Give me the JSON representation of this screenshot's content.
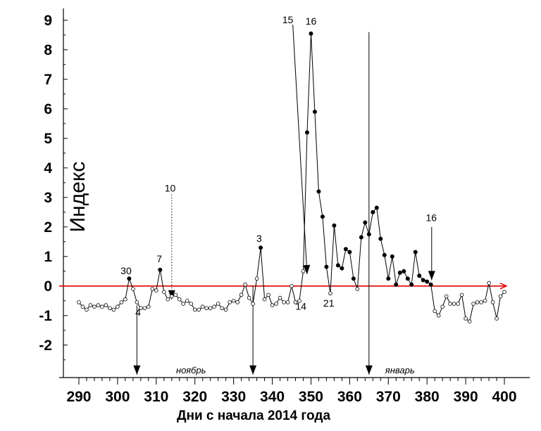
{
  "chart_data": {
    "type": "line",
    "xlabel": "Дни с начала 2014 года",
    "ylabel": "Индекс",
    "xlim": [
      286,
      404
    ],
    "ylim": [
      -3.1,
      9.4
    ],
    "x_ticks": [
      290,
      300,
      310,
      320,
      330,
      340,
      350,
      360,
      370,
      380,
      390,
      400
    ],
    "y_ticks": [
      9,
      8,
      7,
      6,
      5,
      4,
      3,
      2,
      1,
      0,
      -1,
      -2
    ],
    "y_tick_labels": [
      "9",
      "8",
      "7",
      "6",
      "5",
      "4",
      "3",
      "2",
      "1",
      "0",
      "-1",
      "-2"
    ],
    "baseline": {
      "y": 0,
      "color": "#dd0000"
    },
    "series": [
      {
        "x": [
          290,
          291,
          292,
          293,
          294,
          295,
          296,
          297,
          298,
          299,
          300,
          301,
          302,
          303,
          304,
          305,
          306,
          307,
          308,
          309,
          310,
          311,
          312,
          313,
          314,
          315,
          316,
          317,
          318,
          319,
          320,
          321,
          322,
          323,
          324,
          325,
          326,
          327,
          328,
          329,
          330,
          331,
          332,
          333,
          334,
          335,
          336,
          337,
          338,
          339,
          340,
          341,
          342,
          343,
          344,
          345,
          346,
          347,
          348,
          349,
          350,
          351,
          352,
          353,
          354,
          355,
          356,
          357,
          358,
          359,
          360,
          361,
          362,
          363,
          364,
          365,
          366,
          367,
          368,
          369,
          370,
          371,
          372,
          373,
          374,
          375,
          376,
          377,
          378,
          379,
          380,
          381,
          382,
          383,
          384,
          385,
          386,
          387,
          388,
          389,
          390,
          391,
          392,
          393,
          394,
          395,
          396,
          397,
          398,
          399,
          400
        ],
        "y": [
          -0.55,
          -0.7,
          -0.8,
          -0.65,
          -0.7,
          -0.65,
          -0.7,
          -0.65,
          -0.75,
          -0.8,
          -0.7,
          -0.55,
          -0.45,
          0.25,
          -0.1,
          -0.55,
          -0.75,
          -0.75,
          -0.7,
          -0.1,
          -0.15,
          0.55,
          -0.2,
          -0.45,
          -0.35,
          -0.3,
          -0.45,
          -0.6,
          -0.5,
          -0.6,
          -0.8,
          -0.8,
          -0.7,
          -0.75,
          -0.75,
          -0.7,
          -0.6,
          -0.75,
          -0.8,
          -0.55,
          -0.5,
          -0.55,
          -0.3,
          0.05,
          -0.4,
          -0.6,
          0.25,
          1.3,
          -0.45,
          -0.3,
          -0.65,
          -0.6,
          -0.4,
          -0.55,
          -0.55,
          0.0,
          -0.55,
          -0.5,
          0.5,
          5.2,
          8.55,
          5.9,
          3.2,
          2.35,
          0.65,
          -0.25,
          2.05,
          0.7,
          0.6,
          1.25,
          1.15,
          0.25,
          -0.1,
          1.65,
          2.15,
          1.75,
          2.5,
          2.65,
          1.6,
          1.05,
          0.25,
          1.0,
          0.05,
          0.45,
          0.5,
          0.25,
          0.05,
          1.15,
          0.35,
          0.2,
          0.15,
          0.05,
          -0.85,
          -1.0,
          -0.7,
          -0.35,
          -0.6,
          -0.6,
          -0.6,
          -0.3,
          -1.1,
          -1.2,
          -0.6,
          -0.55,
          -0.55,
          -0.5,
          0.1,
          -0.55,
          -1.1,
          -0.35,
          -0.2
        ],
        "filled_points": [
          303,
          311,
          337,
          349,
          350,
          351,
          352,
          353,
          354,
          356,
          357,
          358,
          359,
          360,
          361,
          363,
          364,
          365,
          366,
          367,
          368,
          369,
          370,
          371,
          372,
          373,
          374,
          375,
          376,
          377,
          378,
          379,
          380,
          381
        ]
      }
    ],
    "annotations": [
      {
        "text": "30",
        "x": 302.2,
        "y": 0.4
      },
      {
        "text": "4",
        "x": 305.3,
        "y": -1.0
      },
      {
        "text": "7",
        "x": 310.8,
        "y": 0.8
      },
      {
        "text": "10",
        "x": 313.6,
        "y": 3.2
      },
      {
        "text": "3",
        "x": 336.6,
        "y": 1.5
      },
      {
        "text": "14",
        "x": 347.4,
        "y": -0.8
      },
      {
        "text": "15",
        "x": 344.0,
        "y": 8.9
      },
      {
        "text": "16",
        "x": 350.0,
        "y": 8.85
      },
      {
        "text": "21",
        "x": 354.6,
        "y": -0.7
      },
      {
        "text": "16",
        "x": 381.1,
        "y": 2.2
      }
    ],
    "arrows": [
      {
        "x0": 305,
        "y0": -0.65,
        "x1": 305,
        "y1": -3.0,
        "style": "solid"
      },
      {
        "x0": 314,
        "y0": 3.1,
        "x1": 314,
        "y1": -0.45,
        "style": "dotted"
      },
      {
        "x0": 335,
        "y0": 0.0,
        "x1": 335,
        "y1": -3.0,
        "style": "solid"
      },
      {
        "x0": 345.3,
        "y0": 8.85,
        "x1": 349.0,
        "y1": 0.4,
        "style": "solid"
      },
      {
        "x0": 365,
        "y0": 8.6,
        "x1": 365,
        "y1": -3.0,
        "style": "solid"
      },
      {
        "x0": 381.2,
        "y0": 2.0,
        "x1": 381.2,
        "y1": 0.2,
        "style": "solid"
      }
    ],
    "month_labels": [
      {
        "text": "ноябрь",
        "x": 319
      },
      {
        "text": "январь",
        "x": 373
      }
    ],
    "grid": false
  }
}
